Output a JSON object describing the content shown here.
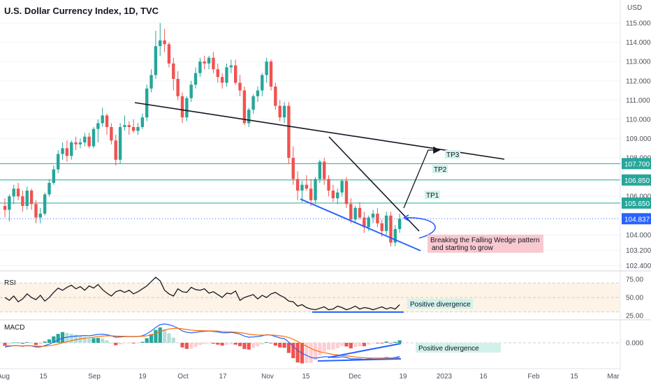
{
  "title": "U.S. Dollar Currency Index, 1D, TVC",
  "currency_label": "USD",
  "colors": {
    "up": "#26a69a",
    "down": "#ef5350",
    "wedge": "#2962ff",
    "level": "#26a69a"
  },
  "chart_data": [
    {
      "type": "candlestick",
      "title": "U.S. Dollar Currency Index, 1D, TVC",
      "y_unit": "USD",
      "ylim": [
        102.2,
        115.4
      ],
      "y_ticks": [
        "115.000",
        "114.000",
        "113.000",
        "112.000",
        "111.000",
        "110.000",
        "109.000",
        "108.000",
        "106.000",
        "104.000",
        "103.200",
        "102.400"
      ],
      "x_ticks": [
        "Aug",
        "15",
        "Sep",
        "19",
        "Oct",
        "17",
        "Nov",
        "15",
        "Dec",
        "19",
        "2023",
        "16",
        "Feb",
        "15",
        "Mar"
      ],
      "price_labels": [
        {
          "value": "107.700",
          "price": 107.7
        },
        {
          "value": "106.850",
          "price": 106.85
        },
        {
          "value": "105.650",
          "price": 105.65
        },
        {
          "value": "104.837",
          "price": 104.837,
          "style": "current"
        }
      ],
      "targets": [
        {
          "label": "TP1",
          "price": 105.65
        },
        {
          "label": "TP2",
          "price": 106.85
        },
        {
          "label": "TP3",
          "price": 107.7
        }
      ],
      "annotations": [
        "Breaking the Falling Wedge pattern and starting to grow"
      ],
      "ohlc": [
        [
          105.5,
          105.9,
          104.9,
          105.3
        ],
        [
          105.3,
          106.1,
          104.7,
          106.0
        ],
        [
          106.0,
          106.6,
          105.6,
          106.4
        ],
        [
          106.4,
          106.7,
          105.8,
          106.0
        ],
        [
          106.0,
          106.3,
          105.2,
          105.5
        ],
        [
          105.5,
          106.5,
          105.3,
          106.3
        ],
        [
          106.3,
          106.4,
          105.3,
          105.6
        ],
        [
          105.6,
          105.8,
          104.6,
          104.9
        ],
        [
          104.9,
          105.4,
          104.6,
          105.1
        ],
        [
          105.1,
          106.2,
          105.0,
          106.1
        ],
        [
          106.1,
          106.9,
          106.0,
          106.7
        ],
        [
          106.7,
          107.6,
          106.6,
          107.4
        ],
        [
          107.4,
          108.4,
          107.2,
          108.2
        ],
        [
          108.2,
          108.8,
          107.9,
          108.5
        ],
        [
          108.5,
          108.9,
          107.8,
          108.1
        ],
        [
          108.1,
          108.9,
          107.9,
          108.8
        ],
        [
          108.8,
          109.1,
          108.4,
          108.7
        ],
        [
          108.7,
          109.0,
          108.5,
          108.8
        ],
        [
          108.8,
          109.3,
          108.6,
          109.1
        ],
        [
          109.1,
          109.3,
          108.5,
          108.6
        ],
        [
          108.6,
          109.6,
          108.5,
          109.5
        ],
        [
          109.5,
          110.0,
          108.8,
          109.8
        ],
        [
          109.8,
          110.6,
          109.6,
          110.2
        ],
        [
          110.2,
          110.3,
          109.2,
          109.6
        ],
        [
          109.6,
          109.8,
          108.7,
          108.9
        ],
        [
          108.9,
          109.2,
          107.6,
          107.9
        ],
        [
          107.9,
          109.8,
          107.7,
          109.6
        ],
        [
          109.6,
          110.2,
          109.4,
          109.7
        ],
        [
          109.7,
          109.9,
          109.2,
          109.6
        ],
        [
          109.6,
          110.0,
          109.3,
          109.4
        ],
        [
          109.4,
          109.8,
          109.2,
          109.6
        ],
        [
          109.6,
          110.3,
          109.5,
          110.1
        ],
        [
          110.1,
          111.8,
          109.9,
          111.6
        ],
        [
          111.6,
          112.6,
          111.4,
          112.3
        ],
        [
          112.3,
          114.6,
          112.1,
          113.8
        ],
        [
          113.8,
          115.0,
          113.3,
          114.1
        ],
        [
          114.1,
          114.7,
          113.5,
          113.9
        ],
        [
          113.9,
          114.0,
          112.7,
          112.9
        ],
        [
          112.9,
          113.2,
          111.5,
          112.1
        ],
        [
          112.1,
          112.5,
          111.0,
          111.2
        ],
        [
          111.2,
          111.4,
          109.8,
          110.1
        ],
        [
          110.1,
          111.2,
          109.9,
          111.1
        ],
        [
          111.1,
          112.0,
          110.9,
          111.8
        ],
        [
          111.8,
          112.7,
          111.6,
          112.4
        ],
        [
          112.4,
          113.2,
          112.2,
          113.0
        ],
        [
          113.0,
          113.3,
          112.6,
          112.9
        ],
        [
          112.9,
          113.3,
          112.6,
          113.2
        ],
        [
          113.2,
          113.5,
          112.4,
          112.6
        ],
        [
          112.6,
          112.9,
          111.9,
          112.2
        ],
        [
          112.2,
          112.4,
          111.6,
          111.9
        ],
        [
          111.9,
          112.9,
          111.7,
          112.7
        ],
        [
          112.7,
          113.1,
          112.4,
          112.8
        ],
        [
          112.8,
          113.1,
          111.8,
          111.9
        ],
        [
          111.9,
          112.3,
          111.2,
          111.5
        ],
        [
          111.5,
          111.7,
          109.7,
          109.8
        ],
        [
          109.8,
          110.6,
          109.6,
          110.5
        ],
        [
          110.5,
          111.3,
          110.3,
          111.2
        ],
        [
          111.2,
          111.7,
          110.9,
          111.5
        ],
        [
          111.5,
          112.4,
          111.2,
          112.3
        ],
        [
          112.3,
          113.2,
          111.9,
          113.0
        ],
        [
          113.0,
          113.1,
          111.5,
          111.7
        ],
        [
          111.7,
          111.9,
          110.5,
          110.7
        ],
        [
          110.7,
          111.0,
          109.9,
          110.1
        ],
        [
          110.1,
          110.9,
          109.8,
          110.7
        ],
        [
          110.7,
          110.9,
          107.7,
          108.0
        ],
        [
          108.0,
          108.6,
          106.6,
          106.9
        ],
        [
          106.9,
          107.3,
          105.8,
          106.3
        ],
        [
          106.3,
          106.8,
          105.7,
          106.6
        ],
        [
          106.6,
          107.1,
          106.3,
          106.4
        ],
        [
          106.4,
          106.9,
          105.5,
          105.8
        ],
        [
          105.8,
          107.0,
          105.6,
          106.9
        ],
        [
          106.9,
          107.9,
          106.7,
          107.8
        ],
        [
          107.8,
          108.0,
          106.6,
          106.9
        ],
        [
          106.9,
          107.1,
          106.0,
          106.3
        ],
        [
          106.3,
          106.6,
          105.7,
          105.9
        ],
        [
          105.9,
          106.4,
          105.6,
          106.2
        ],
        [
          106.2,
          106.9,
          106.0,
          106.8
        ],
        [
          106.8,
          107.0,
          105.4,
          105.6
        ],
        [
          105.6,
          105.9,
          104.6,
          104.8
        ],
        [
          104.8,
          105.5,
          104.6,
          105.4
        ],
        [
          105.4,
          105.7,
          104.8,
          104.9
        ],
        [
          104.9,
          105.2,
          104.1,
          104.4
        ],
        [
          104.4,
          105.0,
          104.2,
          104.9
        ],
        [
          104.9,
          105.3,
          104.6,
          105.1
        ],
        [
          105.1,
          105.4,
          104.4,
          104.6
        ],
        [
          104.6,
          104.8,
          103.9,
          104.2
        ],
        [
          104.2,
          105.2,
          104.0,
          105.0
        ],
        [
          105.0,
          105.2,
          103.4,
          103.6
        ],
        [
          103.6,
          104.5,
          103.4,
          104.3
        ],
        [
          104.3,
          105.1,
          104.1,
          104.837
        ]
      ]
    },
    {
      "type": "line",
      "title": "RSI",
      "ylim": [
        22,
        82
      ],
      "y_ticks": [
        "75.00",
        "50.00",
        "25.00"
      ],
      "annotation": "Positive divergence",
      "values": [
        50,
        46,
        52,
        44,
        48,
        55,
        50,
        47,
        53,
        45,
        50,
        57,
        63,
        60,
        64,
        67,
        62,
        65,
        60,
        66,
        63,
        68,
        61,
        56,
        52,
        58,
        60,
        57,
        60,
        55,
        58,
        62,
        66,
        72,
        78,
        73,
        60,
        55,
        52,
        62,
        58,
        57,
        64,
        61,
        60,
        62,
        56,
        58,
        54,
        50,
        56,
        55,
        59,
        46,
        50,
        52,
        54,
        48,
        53,
        50,
        55,
        57,
        53,
        50,
        45,
        44,
        38,
        40,
        36,
        34,
        33,
        35,
        37,
        33,
        34,
        38,
        36,
        33,
        35,
        38,
        34,
        36,
        35,
        33,
        35,
        37,
        34,
        36,
        34,
        40
      ]
    },
    {
      "type": "line",
      "title": "MACD",
      "y_ticks": [
        "0.000"
      ],
      "annotation": "Positive divergence",
      "macd": [
        -0.3,
        -0.25,
        -0.2,
        -0.2,
        -0.25,
        -0.2,
        -0.22,
        -0.3,
        -0.3,
        -0.2,
        -0.1,
        0.05,
        0.2,
        0.35,
        0.4,
        0.45,
        0.48,
        0.5,
        0.52,
        0.5,
        0.55,
        0.6,
        0.62,
        0.58,
        0.5,
        0.4,
        0.42,
        0.45,
        0.45,
        0.44,
        0.45,
        0.5,
        0.65,
        0.85,
        1.1,
        1.3,
        1.35,
        1.3,
        1.2,
        1.05,
        0.85,
        0.75,
        0.72,
        0.75,
        0.8,
        0.82,
        0.85,
        0.82,
        0.78,
        0.72,
        0.72,
        0.74,
        0.7,
        0.62,
        0.48,
        0.4,
        0.42,
        0.45,
        0.5,
        0.58,
        0.55,
        0.45,
        0.35,
        0.3,
        0.05,
        -0.25,
        -0.55,
        -0.75,
        -0.9,
        -1.05,
        -1.1,
        -1.05,
        -1.0,
        -1.0,
        -1.05,
        -1.05,
        -1.0,
        -1.05,
        -1.15,
        -1.15,
        -1.15,
        -1.18,
        -1.15,
        -1.1,
        -1.1,
        -1.12,
        -1.05,
        -1.1,
        -1.05,
        -0.98
      ],
      "signal": [
        -0.2,
        -0.21,
        -0.21,
        -0.21,
        -0.22,
        -0.22,
        -0.22,
        -0.23,
        -0.25,
        -0.24,
        -0.21,
        -0.16,
        -0.09,
        0.0,
        0.08,
        0.16,
        0.22,
        0.28,
        0.33,
        0.36,
        0.4,
        0.44,
        0.48,
        0.5,
        0.5,
        0.48,
        0.47,
        0.47,
        0.46,
        0.46,
        0.46,
        0.47,
        0.5,
        0.57,
        0.68,
        0.8,
        0.91,
        0.99,
        1.03,
        1.04,
        1.0,
        0.95,
        0.91,
        0.88,
        0.87,
        0.86,
        0.86,
        0.85,
        0.84,
        0.81,
        0.79,
        0.78,
        0.76,
        0.73,
        0.68,
        0.62,
        0.58,
        0.56,
        0.55,
        0.56,
        0.56,
        0.54,
        0.5,
        0.46,
        0.38,
        0.25,
        0.09,
        -0.08,
        -0.24,
        -0.4,
        -0.54,
        -0.64,
        -0.71,
        -0.77,
        -0.83,
        -0.87,
        -0.9,
        -0.93,
        -0.97,
        -1.01,
        -1.04,
        -1.07,
        -1.09,
        -1.09,
        -1.09,
        -1.1,
        -1.09,
        -1.09,
        -1.08,
        -1.06
      ]
    }
  ]
}
